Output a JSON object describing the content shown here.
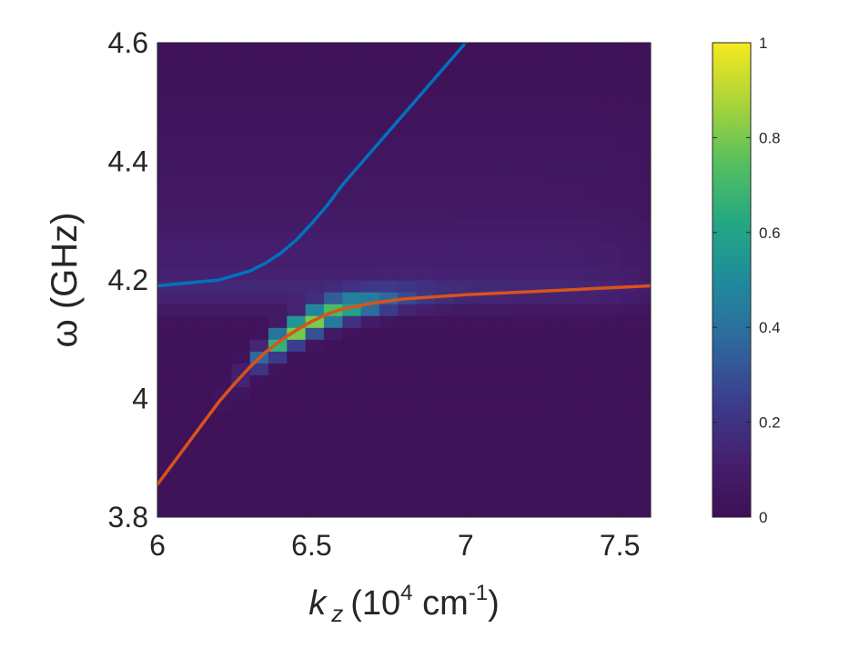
{
  "chart_data": {
    "type": "heatmap",
    "xlabel": {
      "symbol": "k",
      "subscript": "z",
      "open": "(10",
      "exp": "4",
      "unit": " cm",
      "unit_exp": "-1",
      "close": ")"
    },
    "ylabel": "ω (GHz)",
    "xlim": [
      6,
      7.6
    ],
    "ylim": [
      3.8,
      4.6
    ],
    "xticks": [
      6,
      6.5,
      7,
      7.5
    ],
    "xtick_labels": [
      "6",
      "6.5",
      "7",
      "7.5"
    ],
    "yticks": [
      3.8,
      4,
      4.2,
      4.4,
      4.6
    ],
    "ytick_labels": [
      "3.8",
      "4",
      "4.2",
      "4.4",
      "4.6"
    ],
    "colorbar": {
      "range": [
        0,
        1
      ],
      "ticks": [
        0,
        0.2,
        0.4,
        0.6,
        0.8,
        1
      ],
      "tick_labels": [
        "0",
        "0.2",
        "0.4",
        "0.6",
        "0.8",
        "1"
      ],
      "colormap": "parula"
    },
    "heatmap": {
      "grid": {
        "nx": 27,
        "ny": 40,
        "x0": 6.0,
        "dx": 0.06,
        "y0": 3.8,
        "dy": 0.02
      },
      "background": 0.02,
      "horizontal_bands": [
        {
          "y_center": 4.18,
          "y_width": 0.03,
          "value": 0.1
        },
        {
          "y_center": 4.24,
          "y_width": 0.06,
          "value": 0.08
        },
        {
          "y_center": 4.36,
          "y_width": 0.12,
          "value": 0.04
        }
      ],
      "peak": {
        "x": 6.45,
        "y": 4.1,
        "value": 0.82
      }
    },
    "series": [
      {
        "color": "#0072bd",
        "x": [
          6.0,
          6.1,
          6.2,
          6.3,
          6.35,
          6.4,
          6.45,
          6.5,
          6.55,
          6.6,
          6.7,
          6.8,
          6.9,
          7.0,
          7.1
        ],
        "y": [
          4.19,
          4.195,
          4.2,
          4.215,
          4.228,
          4.245,
          4.267,
          4.295,
          4.325,
          4.36,
          4.42,
          4.48,
          4.54,
          4.6,
          4.66
        ]
      },
      {
        "color": "#d95319",
        "x": [
          6.0,
          6.05,
          6.1,
          6.15,
          6.2,
          6.25,
          6.3,
          6.35,
          6.4,
          6.45,
          6.5,
          6.55,
          6.6,
          6.7,
          6.8,
          7.0,
          7.2,
          7.4,
          7.6
        ],
        "y": [
          3.855,
          3.89,
          3.925,
          3.96,
          3.995,
          4.025,
          4.053,
          4.078,
          4.098,
          4.115,
          4.13,
          4.142,
          4.151,
          4.161,
          4.168,
          4.175,
          4.18,
          4.185,
          4.19
        ]
      }
    ]
  }
}
